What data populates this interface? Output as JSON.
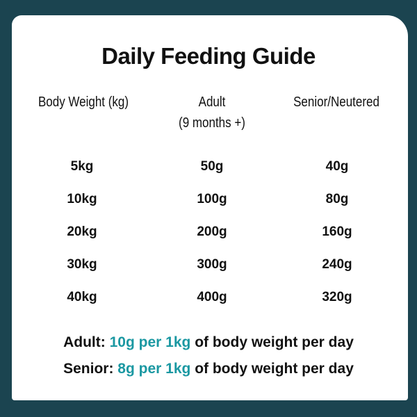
{
  "title": "Daily Feeding Guide",
  "headers": {
    "weight": "Body Weight (kg)",
    "adult": "Adult",
    "adult_sub": "(9 months +)",
    "senior": "Senior/Neutered"
  },
  "rows": [
    {
      "weight": "5kg",
      "adult": "50g",
      "senior": "40g"
    },
    {
      "weight": "10kg",
      "adult": "100g",
      "senior": "80g"
    },
    {
      "weight": "20kg",
      "adult": "200g",
      "senior": "160g"
    },
    {
      "weight": "30kg",
      "adult": "300g",
      "senior": "240g"
    },
    {
      "weight": "40kg",
      "adult": "400g",
      "senior": "320g"
    }
  ],
  "notes": [
    {
      "label": "Adult:",
      "rate": "10g per 1kg",
      "rest": "of body weight per day"
    },
    {
      "label": "Senior:",
      "rate": "8g per 1kg",
      "rest": "of body weight per day"
    }
  ],
  "colors": {
    "background": "#1b4450",
    "card": "#ffffff",
    "accent": "#1b98a2"
  }
}
